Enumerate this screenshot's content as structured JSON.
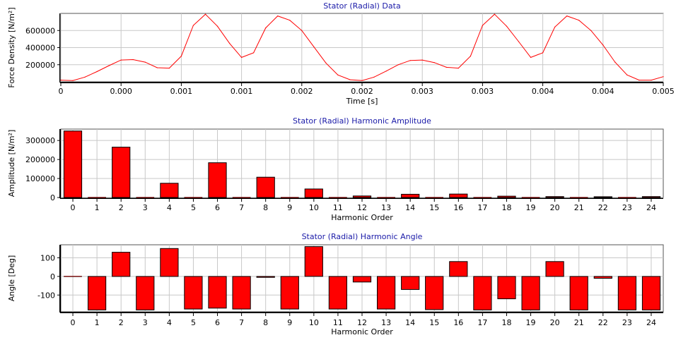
{
  "chart_data": [
    {
      "type": "line",
      "title": "Stator (Radial) Data",
      "xlabel": "Time [s]",
      "ylabel": "Force Density [N/m²]",
      "x_tick_labels": [
        "0",
        "0.000",
        "0.001",
        "0.001",
        "0.002",
        "0.002",
        "0.003",
        "0.003",
        "0.004",
        "0.004",
        "0.005"
      ],
      "y_ticks": [
        200000,
        400000,
        600000
      ],
      "xlim": [
        0,
        0.005
      ],
      "ylim": [
        0,
        800000
      ],
      "grid": true,
      "color": "#ff0000",
      "x": [
        0.0,
        0.0001,
        0.0002,
        0.0003,
        0.0004,
        0.0005,
        0.0006,
        0.0007,
        0.0008,
        0.0009,
        0.001,
        0.0011,
        0.0012,
        0.0013,
        0.0014,
        0.0015,
        0.0016,
        0.0017,
        0.0018,
        0.0019,
        0.002,
        0.0021,
        0.0022,
        0.0023,
        0.0024,
        0.0025,
        0.0026,
        0.0027,
        0.0028,
        0.0029,
        0.003,
        0.0031,
        0.0032,
        0.0033,
        0.0034,
        0.0035,
        0.0036,
        0.0037,
        0.0038,
        0.0039,
        0.004,
        0.0041,
        0.0042,
        0.0043,
        0.0044,
        0.0045,
        0.0046,
        0.0047,
        0.0048,
        0.0049,
        0.005
      ],
      "y": [
        20000,
        15000,
        55000,
        120000,
        190000,
        255000,
        260000,
        230000,
        165000,
        160000,
        300000,
        660000,
        790000,
        650000,
        450000,
        285000,
        340000,
        630000,
        770000,
        720000,
        600000,
        410000,
        220000,
        80000,
        25000,
        15000,
        55000,
        125000,
        200000,
        250000,
        255000,
        225000,
        170000,
        160000,
        300000,
        660000,
        790000,
        650000,
        470000,
        285000,
        340000,
        640000,
        770000,
        720000,
        600000,
        430000,
        230000,
        80000,
        20000,
        20000,
        60000
      ]
    },
    {
      "type": "bar",
      "title": "Stator (Radial) Harmonic Amplitude",
      "xlabel": "Harmonic Order",
      "ylabel": "Amplitude [N/m²]",
      "categories": [
        "0",
        "1",
        "2",
        "3",
        "4",
        "5",
        "6",
        "7",
        "8",
        "9",
        "10",
        "11",
        "12",
        "13",
        "14",
        "15",
        "16",
        "17",
        "18",
        "19",
        "20",
        "21",
        "22",
        "23",
        "24"
      ],
      "values": [
        350000,
        1000,
        265000,
        1000,
        75000,
        1000,
        183000,
        1000,
        107000,
        1000,
        45000,
        1000,
        8000,
        1000,
        17000,
        1000,
        18000,
        1000,
        7000,
        1000,
        5000,
        1000,
        4000,
        1000,
        5000
      ],
      "y_ticks": [
        0,
        100000,
        200000,
        300000
      ],
      "ylim": [
        0,
        360000
      ],
      "grid": true,
      "color": "#ff0000"
    },
    {
      "type": "bar",
      "title": "Stator (Radial) Harmonic Angle",
      "xlabel": "Harmonic Order",
      "ylabel": "Angle [Deg]",
      "categories": [
        "0",
        "1",
        "2",
        "3",
        "4",
        "5",
        "6",
        "7",
        "8",
        "9",
        "10",
        "11",
        "12",
        "13",
        "14",
        "15",
        "16",
        "17",
        "18",
        "19",
        "20",
        "21",
        "22",
        "23",
        "24"
      ],
      "values": [
        0,
        -180,
        130,
        -180,
        150,
        -175,
        -170,
        -175,
        -5,
        -175,
        160,
        -175,
        -30,
        -175,
        -70,
        -178,
        80,
        -180,
        -120,
        -180,
        80,
        -180,
        -10,
        -180,
        -180
      ],
      "y_ticks": [
        -100,
        0,
        100
      ],
      "ylim": [
        -190,
        170
      ],
      "grid": true,
      "color": "#ff0000"
    }
  ]
}
